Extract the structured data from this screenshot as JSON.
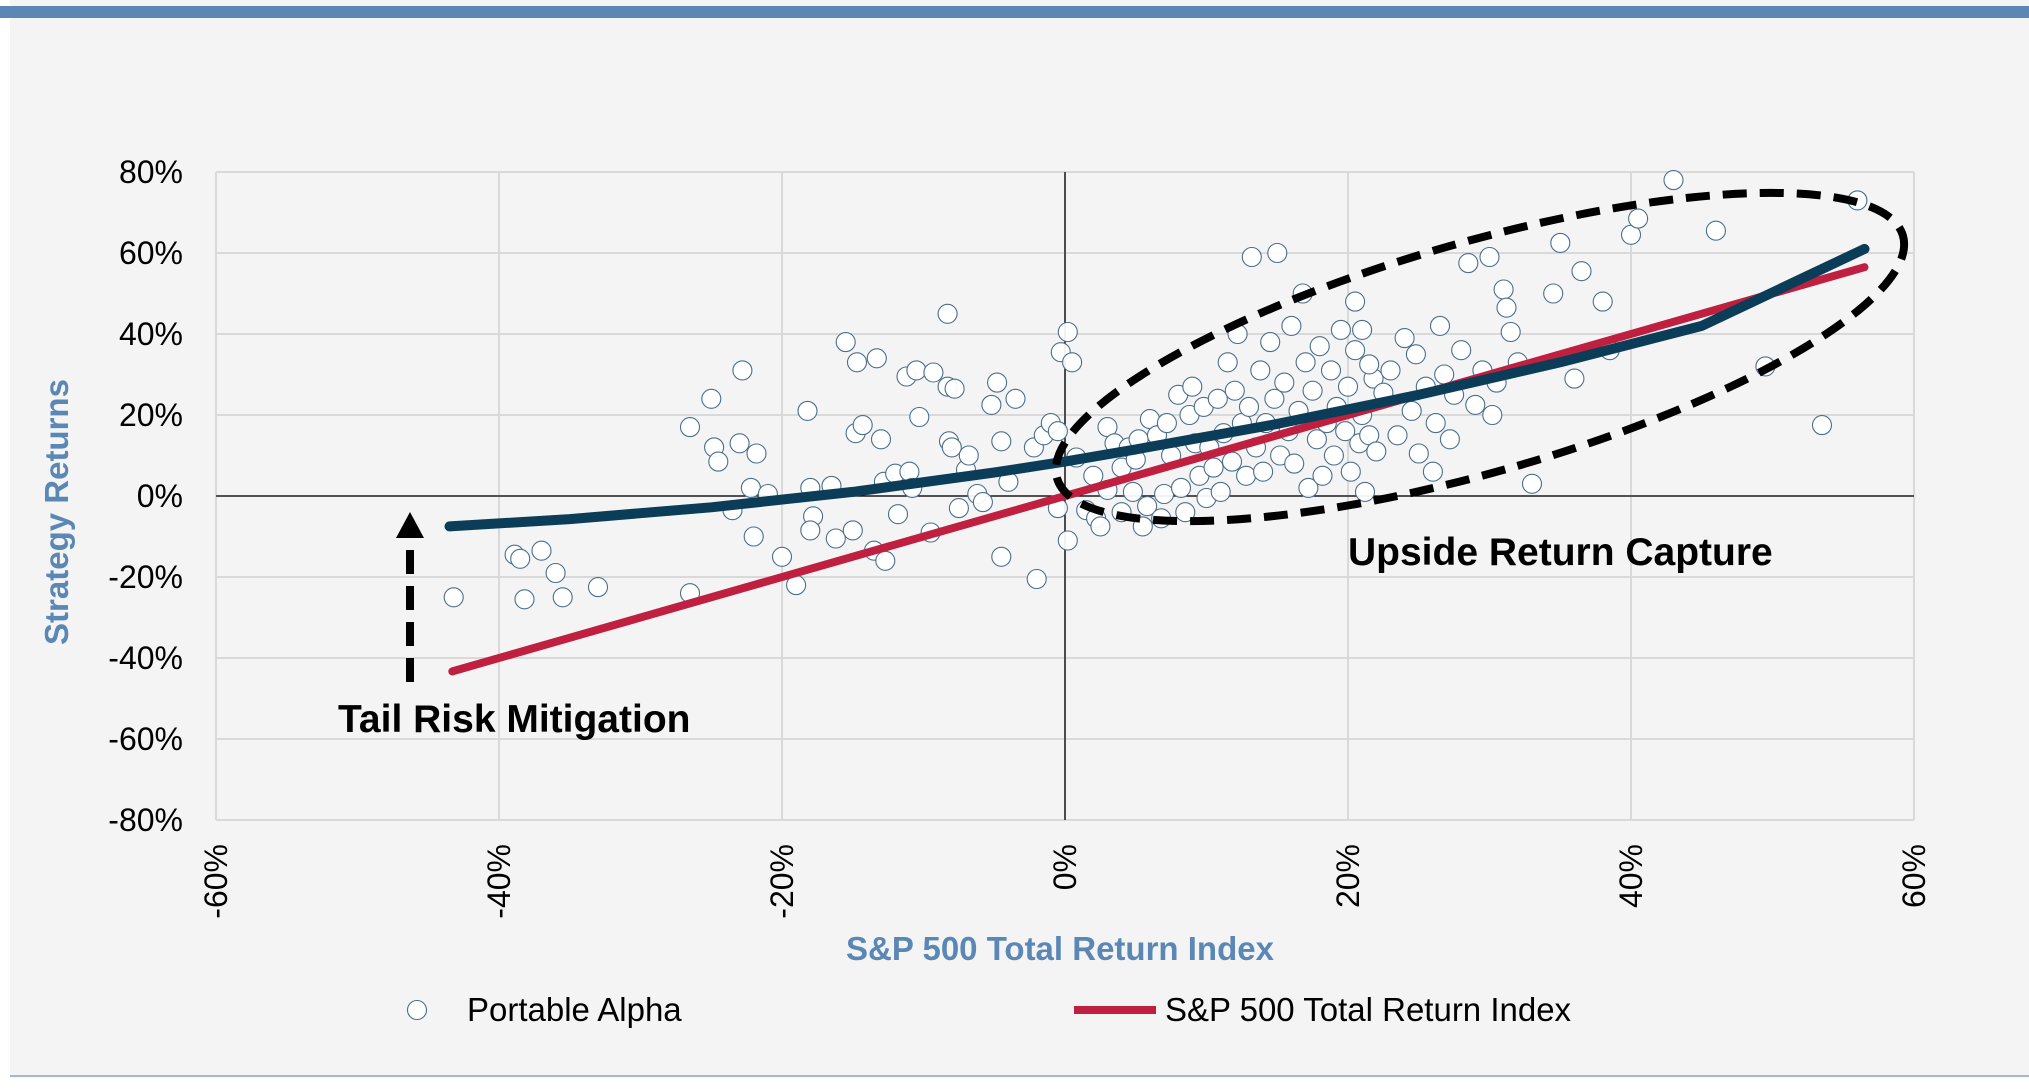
{
  "chart_data": {
    "type": "scatter",
    "title": "",
    "xlabel": "S&P 500 Total Return Index",
    "ylabel": "Strategy Returns",
    "xlim": [
      -0.6,
      0.6
    ],
    "ylim": [
      -0.8,
      0.8
    ],
    "x_ticks": [
      {
        "value": -0.6,
        "label": "-60%"
      },
      {
        "value": -0.4,
        "label": "-40%"
      },
      {
        "value": -0.2,
        "label": "-20%"
      },
      {
        "value": 0.0,
        "label": "0%"
      },
      {
        "value": 0.2,
        "label": "20%"
      },
      {
        "value": 0.4,
        "label": "40%"
      },
      {
        "value": 0.6,
        "label": "60%"
      }
    ],
    "y_ticks": [
      {
        "value": 0.8,
        "label": "80%"
      },
      {
        "value": 0.6,
        "label": "60%"
      },
      {
        "value": 0.4,
        "label": "40%"
      },
      {
        "value": 0.2,
        "label": "20%"
      },
      {
        "value": 0.0,
        "label": "0%"
      },
      {
        "value": -0.2,
        "label": "-20%"
      },
      {
        "value": -0.4,
        "label": "-40%"
      },
      {
        "value": -0.6,
        "label": "-60%"
      },
      {
        "value": -0.8,
        "label": "-80%"
      }
    ],
    "grid": true,
    "legend_position": "bottom",
    "legend": [
      {
        "label": "Portable Alpha",
        "kind": "marker"
      },
      {
        "label": "S&P 500 Total Return Index",
        "kind": "line"
      }
    ],
    "annotations": {
      "upside": "Upside Return Capture",
      "tail": "Tail Risk Mitigation"
    },
    "colors": {
      "background": "#f4f4f4",
      "top_bar": "#5b87b5",
      "axis_title": "#5b87b5",
      "grid": "#d9d9d9",
      "marker_edge": "#4a6f8c",
      "sp500_line": "#c0203f",
      "trend_line": "#0b3d58",
      "annotation": "#000000"
    },
    "series": [
      {
        "kind": "scatter",
        "points": [
          [
            -0.432,
            -0.25
          ],
          [
            -0.389,
            -0.145
          ],
          [
            -0.385,
            -0.155
          ],
          [
            -0.382,
            -0.255
          ],
          [
            -0.37,
            -0.135
          ],
          [
            -0.36,
            -0.19
          ],
          [
            -0.355,
            -0.25
          ],
          [
            -0.33,
            -0.225
          ],
          [
            -0.265,
            0.17
          ],
          [
            -0.265,
            -0.24
          ],
          [
            -0.25,
            0.24
          ],
          [
            -0.248,
            0.12
          ],
          [
            -0.245,
            0.085
          ],
          [
            -0.235,
            -0.035
          ],
          [
            -0.23,
            0.13
          ],
          [
            -0.228,
            0.31
          ],
          [
            -0.222,
            0.02
          ],
          [
            -0.22,
            -0.1
          ],
          [
            -0.218,
            0.105
          ],
          [
            -0.21,
            0.005
          ],
          [
            -0.2,
            -0.15
          ],
          [
            -0.19,
            -0.22
          ],
          [
            -0.182,
            0.21
          ],
          [
            -0.18,
            0.02
          ],
          [
            -0.178,
            -0.05
          ],
          [
            -0.18,
            -0.085
          ],
          [
            -0.165,
            0.025
          ],
          [
            -0.162,
            -0.105
          ],
          [
            -0.155,
            0.38
          ],
          [
            -0.15,
            -0.085
          ],
          [
            -0.148,
            0.155
          ],
          [
            -0.147,
            0.33
          ],
          [
            -0.143,
            0.175
          ],
          [
            -0.135,
            -0.135
          ],
          [
            -0.133,
            0.34
          ],
          [
            -0.13,
            0.14
          ],
          [
            -0.128,
            0.035
          ],
          [
            -0.127,
            -0.16
          ],
          [
            -0.12,
            0.055
          ],
          [
            -0.118,
            -0.045
          ],
          [
            -0.112,
            0.295
          ],
          [
            -0.11,
            0.06
          ],
          [
            -0.108,
            0.02
          ],
          [
            -0.105,
            0.31
          ],
          [
            -0.103,
            0.195
          ],
          [
            -0.095,
            -0.09
          ],
          [
            -0.093,
            0.305
          ],
          [
            -0.083,
            0.45
          ],
          [
            -0.083,
            0.27
          ],
          [
            -0.082,
            0.135
          ],
          [
            -0.08,
            0.12
          ],
          [
            -0.078,
            0.265
          ],
          [
            -0.075,
            -0.03
          ],
          [
            -0.07,
            0.065
          ],
          [
            -0.068,
            0.1
          ],
          [
            -0.062,
            0.005
          ],
          [
            -0.058,
            -0.015
          ],
          [
            -0.052,
            0.225
          ],
          [
            -0.048,
            0.28
          ],
          [
            -0.045,
            0.135
          ],
          [
            -0.045,
            -0.15
          ],
          [
            -0.04,
            0.035
          ],
          [
            -0.035,
            0.24
          ],
          [
            -0.022,
            0.12
          ],
          [
            -0.02,
            -0.205
          ],
          [
            -0.015,
            0.15
          ],
          [
            -0.01,
            0.18
          ],
          [
            -0.005,
            0.16
          ],
          [
            -0.003,
            0.355
          ],
          [
            -0.005,
            -0.03
          ],
          [
            0.002,
            0.405
          ],
          [
            0.005,
            0.33
          ],
          [
            0.008,
            0.095
          ],
          [
            0.002,
            -0.11
          ],
          [
            0.015,
            -0.035
          ],
          [
            0.02,
            0.05
          ],
          [
            0.022,
            -0.055
          ],
          [
            0.025,
            -0.075
          ],
          [
            0.03,
            0.015
          ],
          [
            0.03,
            0.17
          ],
          [
            0.035,
            0.13
          ],
          [
            0.04,
            0.07
          ],
          [
            0.04,
            -0.04
          ],
          [
            0.045,
            0.12
          ],
          [
            0.048,
            0.01
          ],
          [
            0.05,
            0.09
          ],
          [
            0.052,
            0.14
          ],
          [
            0.055,
            -0.075
          ],
          [
            0.058,
            -0.025
          ],
          [
            0.06,
            0.19
          ],
          [
            0.065,
            0.15
          ],
          [
            0.068,
            -0.055
          ],
          [
            0.07,
            0.005
          ],
          [
            0.072,
            0.18
          ],
          [
            0.075,
            0.1
          ],
          [
            0.08,
            0.25
          ],
          [
            0.082,
            0.02
          ],
          [
            0.085,
            -0.04
          ],
          [
            0.088,
            0.2
          ],
          [
            0.09,
            0.27
          ],
          [
            0.092,
            0.13
          ],
          [
            0.095,
            0.05
          ],
          [
            0.098,
            0.22
          ],
          [
            0.1,
            -0.005
          ],
          [
            0.102,
            0.12
          ],
          [
            0.105,
            0.07
          ],
          [
            0.108,
            0.24
          ],
          [
            0.11,
            0.01
          ],
          [
            0.112,
            0.155
          ],
          [
            0.115,
            0.33
          ],
          [
            0.118,
            0.085
          ],
          [
            0.12,
            0.26
          ],
          [
            0.122,
            0.4
          ],
          [
            0.125,
            0.18
          ],
          [
            0.128,
            0.05
          ],
          [
            0.13,
            0.22
          ],
          [
            0.132,
            0.59
          ],
          [
            0.135,
            0.12
          ],
          [
            0.138,
            0.31
          ],
          [
            0.14,
            0.06
          ],
          [
            0.142,
            0.18
          ],
          [
            0.145,
            0.38
          ],
          [
            0.148,
            0.24
          ],
          [
            0.15,
            0.6
          ],
          [
            0.152,
            0.1
          ],
          [
            0.155,
            0.28
          ],
          [
            0.158,
            0.16
          ],
          [
            0.16,
            0.42
          ],
          [
            0.162,
            0.08
          ],
          [
            0.165,
            0.21
          ],
          [
            0.168,
            0.5
          ],
          [
            0.17,
            0.33
          ],
          [
            0.172,
            0.02
          ],
          [
            0.175,
            0.26
          ],
          [
            0.178,
            0.14
          ],
          [
            0.18,
            0.37
          ],
          [
            0.182,
            0.05
          ],
          [
            0.185,
            0.18
          ],
          [
            0.188,
            0.31
          ],
          [
            0.19,
            0.1
          ],
          [
            0.192,
            0.22
          ],
          [
            0.195,
            0.41
          ],
          [
            0.198,
            0.16
          ],
          [
            0.2,
            0.27
          ],
          [
            0.202,
            0.06
          ],
          [
            0.205,
            0.36
          ],
          [
            0.208,
            0.13
          ],
          [
            0.21,
            0.2
          ],
          [
            0.212,
            0.01
          ],
          [
            0.215,
            0.15
          ],
          [
            0.218,
            0.29
          ],
          [
            0.22,
            0.11
          ],
          [
            0.205,
            0.48
          ],
          [
            0.21,
            0.41
          ],
          [
            0.215,
            0.325
          ],
          [
            0.225,
            0.255
          ],
          [
            0.23,
            0.31
          ],
          [
            0.235,
            0.15
          ],
          [
            0.24,
            0.39
          ],
          [
            0.245,
            0.21
          ],
          [
            0.248,
            0.35
          ],
          [
            0.25,
            0.105
          ],
          [
            0.255,
            0.27
          ],
          [
            0.26,
            0.06
          ],
          [
            0.262,
            0.18
          ],
          [
            0.265,
            0.42
          ],
          [
            0.268,
            0.3
          ],
          [
            0.272,
            0.14
          ],
          [
            0.275,
            0.25
          ],
          [
            0.28,
            0.36
          ],
          [
            0.285,
            0.575
          ],
          [
            0.29,
            0.225
          ],
          [
            0.295,
            0.31
          ],
          [
            0.3,
            0.59
          ],
          [
            0.302,
            0.2
          ],
          [
            0.305,
            0.28
          ],
          [
            0.31,
            0.51
          ],
          [
            0.312,
            0.465
          ],
          [
            0.315,
            0.405
          ],
          [
            0.32,
            0.33
          ],
          [
            0.33,
            0.03
          ],
          [
            0.345,
            0.5
          ],
          [
            0.35,
            0.625
          ],
          [
            0.36,
            0.29
          ],
          [
            0.365,
            0.555
          ],
          [
            0.38,
            0.48
          ],
          [
            0.385,
            0.36
          ],
          [
            0.4,
            0.645
          ],
          [
            0.405,
            0.685
          ],
          [
            0.43,
            0.78
          ],
          [
            0.46,
            0.655
          ],
          [
            0.495,
            0.32
          ],
          [
            0.535,
            0.175
          ],
          [
            0.56,
            0.73
          ]
        ]
      },
      {
        "name": "S&P 500 Total Return Index",
        "kind": "line",
        "x": [
          -0.433,
          0.565
        ],
        "y": [
          -0.433,
          0.565
        ]
      },
      {
        "kind": "line",
        "x": [
          -0.435,
          -0.35,
          -0.25,
          -0.15,
          -0.05,
          0.0,
          0.05,
          0.15,
          0.25,
          0.35,
          0.45,
          0.565
        ],
        "y": [
          -0.075,
          -0.057,
          -0.028,
          0.01,
          0.058,
          0.085,
          0.115,
          0.178,
          0.25,
          0.33,
          0.42,
          0.61
        ]
      }
    ]
  }
}
